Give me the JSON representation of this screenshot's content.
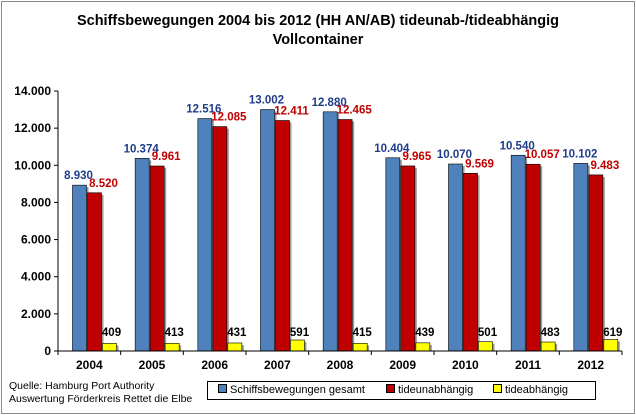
{
  "chart_data": {
    "type": "bar",
    "title": "Schiffsbewegungen 2004 bis  2012 (HH AN/AB) tideunab-/tideabhängig",
    "subtitle": "Vollcontainer",
    "categories": [
      "2004",
      "2005",
      "2006",
      "2007",
      "2008",
      "2009",
      "2010",
      "2011",
      "2012"
    ],
    "series": [
      {
        "name": "Schiffsbewegungen gesamt",
        "values": [
          8930,
          10374,
          12516,
          13002,
          12880,
          10404,
          10070,
          10540,
          10102
        ],
        "labels": [
          "8.930",
          "10.374",
          "12.516",
          "13.002",
          "12.880",
          "10.404",
          "10.070",
          "10.540",
          "10.102"
        ],
        "color": "#4f81bd",
        "label_color": "#1f3c8c"
      },
      {
        "name": "tideunabhängig",
        "values": [
          8520,
          9961,
          12085,
          12411,
          12465,
          9965,
          9569,
          10057,
          9483
        ],
        "labels": [
          "8.520",
          "9.961",
          "12.085",
          "12.411",
          "12.465",
          "9.965",
          "9.569",
          "10.057",
          "9.483"
        ],
        "color": "#c00000",
        "label_color": "#c00000"
      },
      {
        "name": "tideabhängig",
        "values": [
          409,
          413,
          431,
          591,
          415,
          439,
          501,
          483,
          619
        ],
        "labels": [
          "409",
          "413",
          "431",
          "591",
          "415",
          "439",
          "501",
          "483",
          "619"
        ],
        "color": "#ffff00",
        "label_color": "#000000"
      }
    ],
    "y_ticks": [
      "0",
      "2.000",
      "4.000",
      "6.000",
      "8.000",
      "10.000",
      "12.000",
      "14.000"
    ],
    "ylim": [
      0,
      14000
    ],
    "grid": false,
    "legend_position": "bottom"
  },
  "source": {
    "line1": "Quelle: Hamburg Port Authority",
    "line2": "Auswertung Förderkreis Rettet die Elbe"
  }
}
